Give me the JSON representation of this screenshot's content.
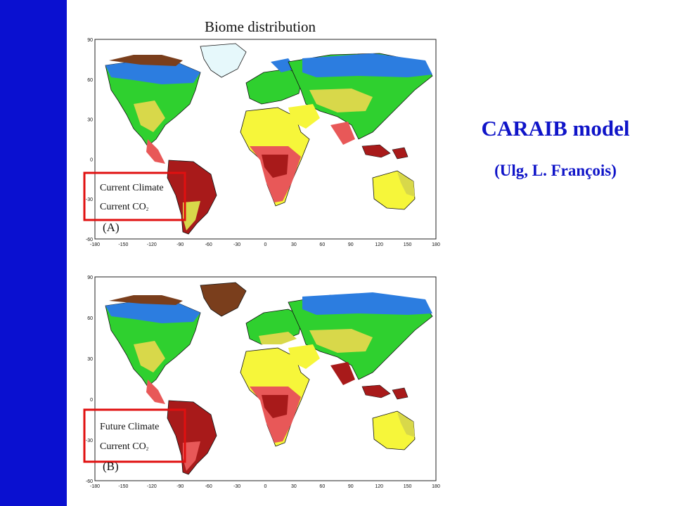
{
  "slide": {
    "sidebar_color": "#0a10d0",
    "title_color": "#0f14c8",
    "title": "CARAIB model",
    "subtitle": "(Ulg, L. François)"
  },
  "figure": {
    "title": "Biome distribution",
    "x_ticks": [
      "-180",
      "-150",
      "-120",
      "-90",
      "-60",
      "-30",
      "0",
      "30",
      "60",
      "90",
      "120",
      "150",
      "180"
    ],
    "y_ticks": [
      "90",
      "60",
      "30",
      "0",
      "-30",
      "-60"
    ],
    "panels": [
      {
        "label": "(A)",
        "scenario_line1": "Current Climate",
        "scenario_line2": "Current CO",
        "subscript": "2"
      },
      {
        "label": "(B)",
        "scenario_line1": "Future Climate",
        "scenario_line2": "Current CO",
        "subscript": "2"
      }
    ],
    "biome_colors": {
      "ice": "#e6f8fb",
      "tundra": "#7a3e1c",
      "boreal": "#2c7de0",
      "boreal_light": "#7fd0ea",
      "temperate": "#2fd02f",
      "temperate_light": "#a6e85a",
      "grassland": "#d8d84a",
      "desert": "#f6f63a",
      "savanna": "#e85858",
      "tropical_forest": "#a81a1a"
    },
    "highlight_box_color": "#e01010"
  }
}
